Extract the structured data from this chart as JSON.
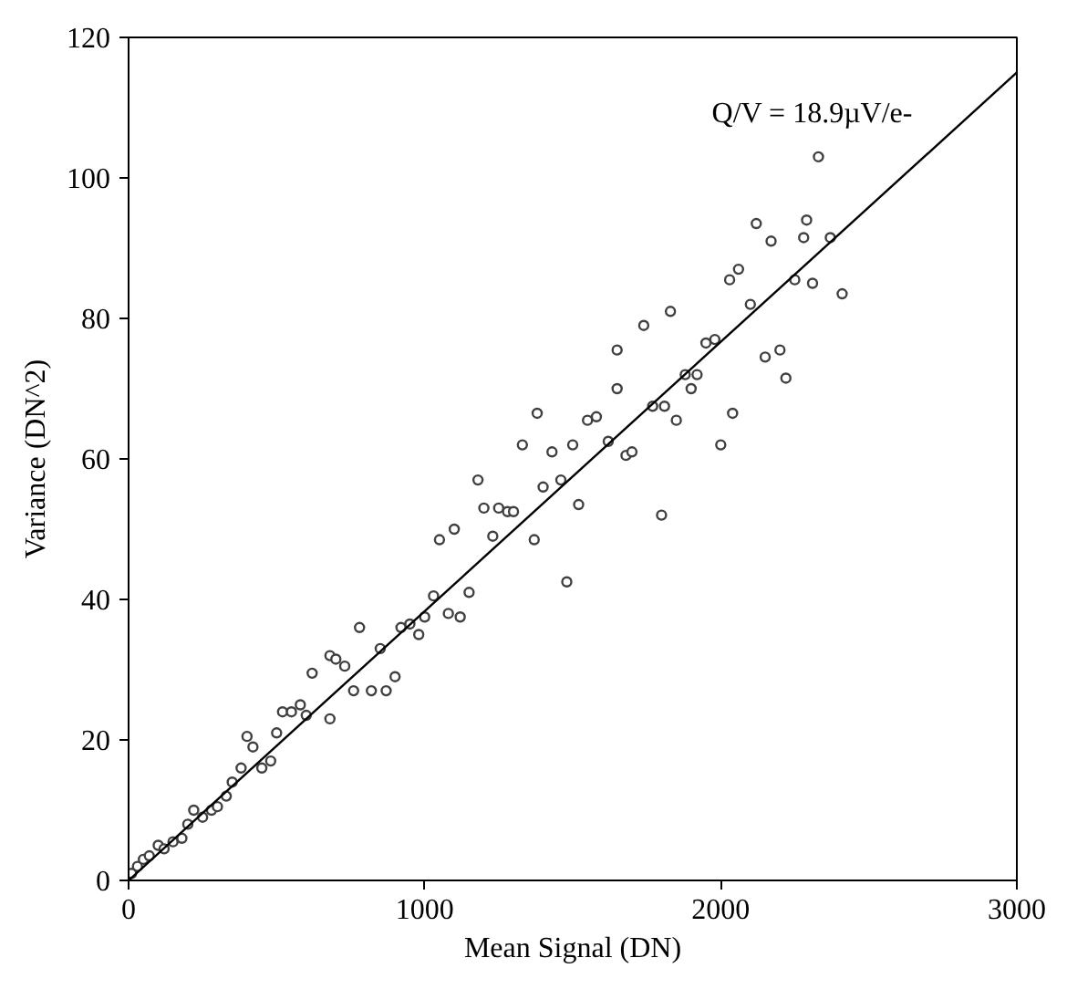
{
  "chart_data": {
    "type": "scatter",
    "xlabel": "Mean Signal (DN)",
    "ylabel": "Variance (DN^2)",
    "xlim": [
      0,
      3000
    ],
    "ylim": [
      0,
      120
    ],
    "xticks": [
      0,
      1000,
      2000,
      3000
    ],
    "yticks": [
      0,
      20,
      40,
      60,
      80,
      100,
      120
    ],
    "grid": false,
    "marker": "circle",
    "annotations": [
      "Q/V = 18.9µV/e-"
    ],
    "series": [
      {
        "color": "#404040",
        "x": [
          10,
          30,
          50,
          70,
          100,
          120,
          150,
          180,
          200,
          220,
          250,
          280,
          300,
          330,
          350,
          380,
          400,
          420,
          450,
          480,
          500,
          520,
          550,
          580,
          600,
          620,
          680,
          680,
          700,
          730,
          760,
          780,
          820,
          850,
          870,
          900,
          920,
          950,
          980,
          1000,
          1030,
          1050,
          1080,
          1100,
          1120,
          1150,
          1180,
          1200,
          1230,
          1250,
          1280,
          1300,
          1330,
          1380,
          1370,
          1400,
          1430,
          1460,
          1480,
          1500,
          1520,
          1550,
          1580,
          1620,
          1650,
          1650,
          1680,
          1700,
          1740,
          1770,
          1800,
          1810,
          1830,
          1850,
          1880,
          1900,
          1920,
          1950,
          1980,
          2000,
          2040,
          2030,
          2060,
          2100,
          2120,
          2150,
          2170,
          2200,
          2220,
          2250,
          2280,
          2290,
          2310,
          2330,
          2370,
          2410
        ],
        "values": [
          1,
          2,
          3,
          3.5,
          5,
          4.5,
          5.5,
          6,
          8,
          10,
          9,
          10,
          10.5,
          12,
          14,
          16,
          20.5,
          19,
          16,
          17,
          21,
          24,
          24,
          25,
          23.5,
          29.5,
          23,
          32,
          31.5,
          30.5,
          27,
          36,
          27,
          33,
          27,
          29,
          36,
          36.5,
          35,
          37.5,
          40.5,
          48.5,
          38,
          50,
          37.5,
          41,
          57,
          53,
          49,
          53,
          52.5,
          52.5,
          62,
          66.5,
          48.5,
          56,
          61,
          57,
          42.5,
          62,
          53.5,
          65.5,
          66,
          62.5,
          70,
          75.5,
          60.5,
          61,
          79,
          67.5,
          52,
          67.5,
          81,
          65.5,
          72,
          70,
          72,
          76.5,
          77,
          62,
          66.5,
          85.5,
          87,
          82,
          93.5,
          74.5,
          91,
          75.5,
          71.5,
          85.5,
          91.5,
          94,
          85,
          103,
          91.5,
          83.5
        ]
      },
      {
        "type": "line",
        "color": "#000000",
        "line_style": "solid",
        "marker": "none",
        "x": [
          0,
          3000
        ],
        "values": [
          0,
          115
        ]
      }
    ]
  }
}
